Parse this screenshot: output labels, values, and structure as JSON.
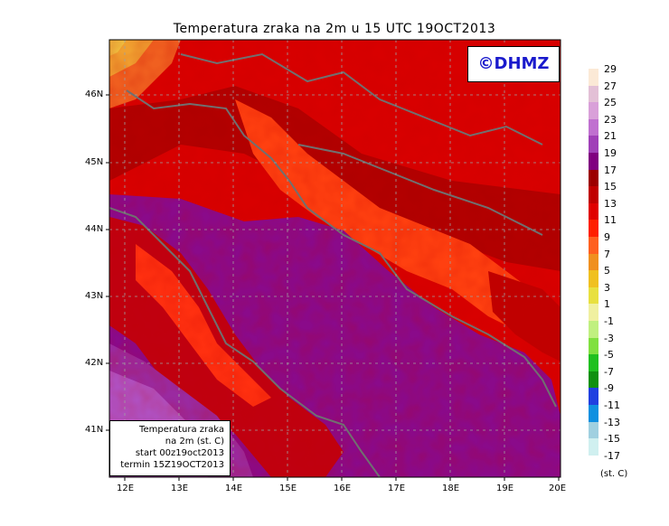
{
  "title": "Temperatura zraka na 2m u 15 UTC 19OCT2013",
  "logo": "©DHMZ",
  "info": {
    "line1": "Temperatura zraka",
    "line2": "na 2m (st. C)",
    "line3": "start 00z19oct2013",
    "line4": "termin 15Z19OCT2013"
  },
  "axes": {
    "lon_labels": [
      "12E",
      "13E",
      "14E",
      "15E",
      "16E",
      "17E",
      "18E",
      "19E",
      "20E"
    ],
    "lat_labels": [
      "46N",
      "45N",
      "44N",
      "43N",
      "42N",
      "41N"
    ],
    "lon_range": [
      11.85,
      20.0
    ],
    "lat_range": [
      40.28,
      46.75
    ]
  },
  "legend": {
    "labels": [
      "29",
      "27",
      "25",
      "23",
      "21",
      "19",
      "17",
      "15",
      "13",
      "11",
      "9",
      "7",
      "5",
      "3",
      "1",
      "-1",
      "-3",
      "-5",
      "-7",
      "-9",
      "-11",
      "-13",
      "-15",
      "-17"
    ],
    "colors": [
      "#fbe9d6",
      "#e3c0d6",
      "#d9a0d9",
      "#c070d0",
      "#a040b8",
      "#800080",
      "#9c0000",
      "#c00000",
      "#e00000",
      "#ff2000",
      "#ff6020",
      "#f09020",
      "#f0c020",
      "#e8e040",
      "#f0f0a0",
      "#c0f080",
      "#80e040",
      "#20c020",
      "#109010",
      "#2040e0",
      "#1090e0",
      "#a0d0e0",
      "#d0f0f0",
      "#f0ffff"
    ],
    "units": "(st. C)"
  }
}
